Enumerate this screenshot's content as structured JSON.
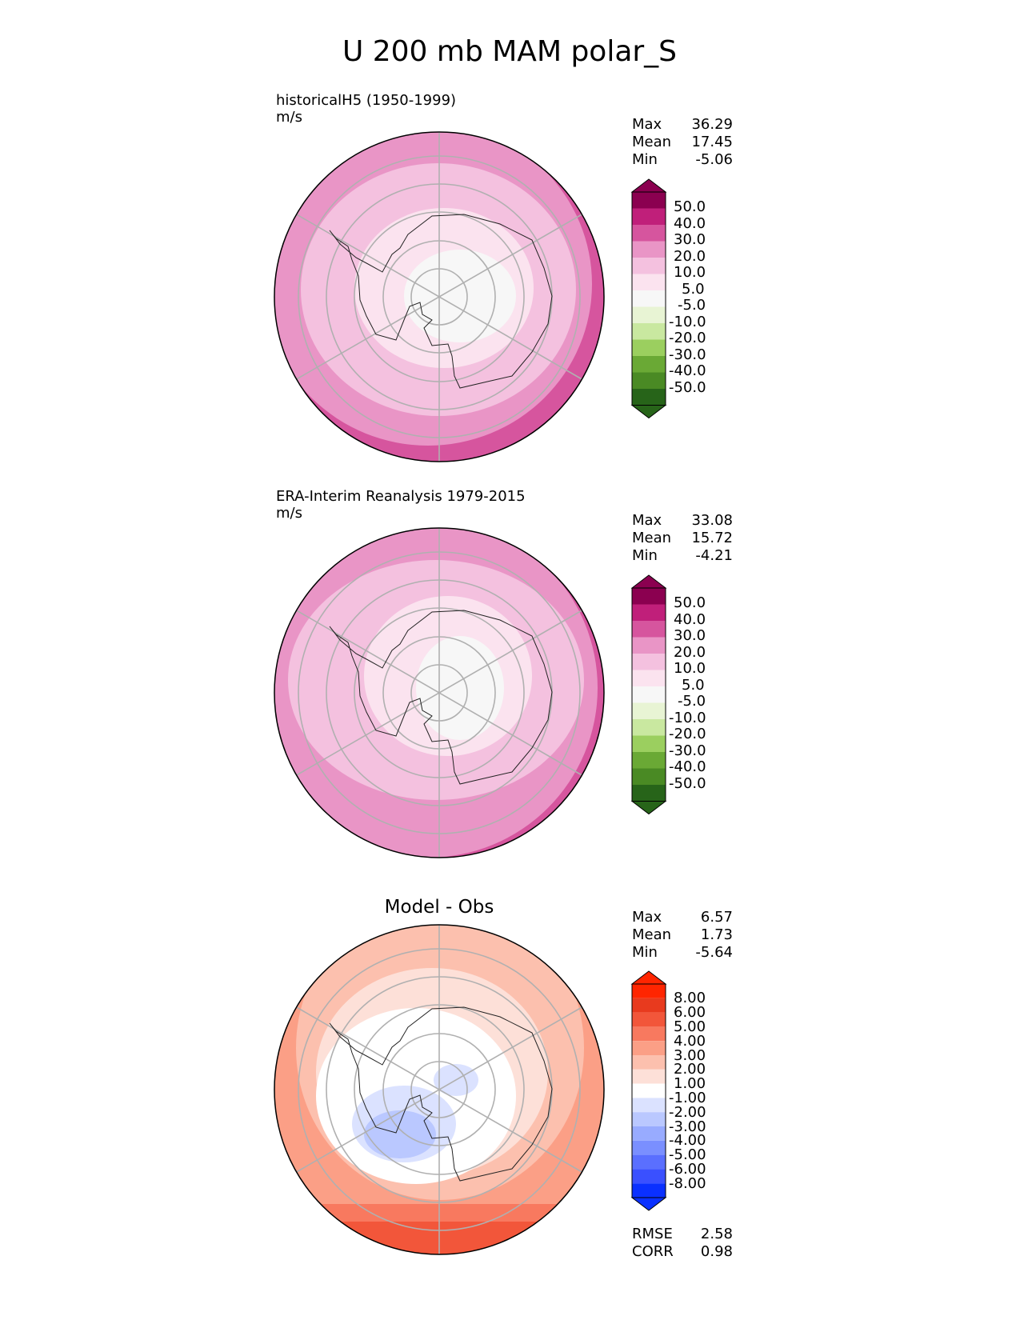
{
  "title": "U 200 mb MAM polar_S",
  "colors": {
    "pink": [
      "#ffffff",
      "#fbe3ef",
      "#f4c1df",
      "#e995c6",
      "#d6559e",
      "#c01f7a",
      "#8b0050"
    ],
    "green": [
      "#f7f7f7",
      "#e8f4d4",
      "#c9e8a0",
      "#9bcf5f",
      "#6aa935",
      "#4a8a24",
      "#276419"
    ],
    "diff_pos": [
      "#ffffff",
      "#fde0d8",
      "#fcc0ae",
      "#fb9f86",
      "#f8795f",
      "#f2563a",
      "#e83a1e",
      "#ff2500"
    ],
    "diff_neg": [
      "#ffffff",
      "#dbe2ff",
      "#bac8ff",
      "#98abff",
      "#7a8fff",
      "#5a6fff",
      "#3a50ff",
      "#0a30ff"
    ],
    "grid": "#b0b0b0",
    "coast": "#222222"
  },
  "chart_data": [
    {
      "type": "heatmap",
      "projection": "south-polar-stereographic",
      "title_left": "historicalH5 (1950-1999)",
      "units": "m/s",
      "stats": {
        "Max": "36.29",
        "Mean": "17.45",
        "Min": "-5.06"
      },
      "colorbar_ticks": [
        "50.0",
        "40.0",
        "30.0",
        "20.0",
        "10.0",
        "5.0",
        "-5.0",
        "-10.0",
        "-20.0",
        "-30.0",
        "-40.0",
        "-50.0"
      ],
      "colorbar_levels": [
        -50,
        -40,
        -30,
        -20,
        -10,
        -5,
        5,
        10,
        20,
        30,
        40,
        50
      ],
      "field_bands_mps": [
        35,
        25,
        15,
        7.5,
        0
      ]
    },
    {
      "type": "heatmap",
      "projection": "south-polar-stereographic",
      "title_left": "ERA-Interim Reanalysis 1979-2015",
      "units": "m/s",
      "stats": {
        "Max": "33.08",
        "Mean": "15.72",
        "Min": "-4.21"
      },
      "colorbar_ticks": [
        "50.0",
        "40.0",
        "30.0",
        "20.0",
        "10.0",
        "5.0",
        "-5.0",
        "-10.0",
        "-20.0",
        "-30.0",
        "-40.0",
        "-50.0"
      ],
      "colorbar_levels": [
        -50,
        -40,
        -30,
        -20,
        -10,
        -5,
        5,
        10,
        20,
        30,
        40,
        50
      ],
      "field_bands_mps": [
        35,
        25,
        15,
        7.5,
        0
      ]
    },
    {
      "type": "heatmap",
      "projection": "south-polar-stereographic",
      "title_center": "Model - Obs",
      "stats": {
        "Max": "6.57",
        "Mean": "1.73",
        "Min": "-5.64"
      },
      "colorbar_ticks": [
        "8.00",
        "6.00",
        "5.00",
        "4.00",
        "3.00",
        "2.00",
        "1.00",
        "-1.00",
        "-2.00",
        "-3.00",
        "-4.00",
        "-5.00",
        "-6.00",
        "-8.00"
      ],
      "colorbar_levels": [
        -8,
        -6,
        -5,
        -4,
        -3,
        -2,
        -1,
        1,
        2,
        3,
        4,
        5,
        6,
        8
      ],
      "metrics": {
        "RMSE": "2.58",
        "CORR": "0.98"
      }
    }
  ]
}
